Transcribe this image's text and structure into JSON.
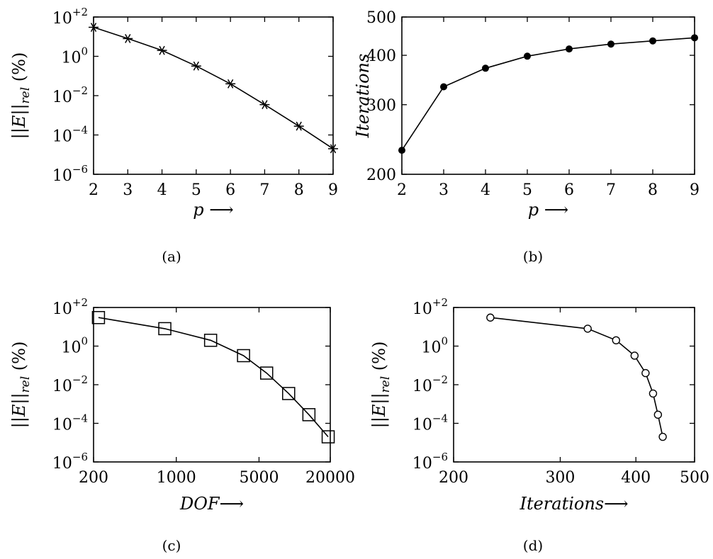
{
  "chart_data": [
    {
      "type": "line",
      "panel": "a",
      "caption": "(a)",
      "xlabel": "p ⟶",
      "ylabel": "||E||rel (%)",
      "yscale": "log",
      "x": [
        2,
        3,
        4,
        5,
        6,
        7,
        8,
        9
      ],
      "xticks": [
        2,
        3,
        4,
        5,
        6,
        7,
        8,
        9
      ],
      "xlim": [
        2,
        9
      ],
      "ylim_exp": [
        -6,
        2
      ],
      "yticks_exp": [
        -6,
        -4,
        -2,
        0,
        2
      ],
      "ytick_labels": [
        "10−6",
        "10−4",
        "10−2",
        "100",
        "10+2"
      ],
      "marker": "star",
      "y": [
        30,
        8,
        2,
        0.32,
        0.04,
        0.0035,
        0.00028,
        2e-05
      ]
    },
    {
      "type": "line",
      "panel": "b",
      "caption": "(b)",
      "xlabel": "p ⟶",
      "ylabel": "Iterations",
      "yscale": "log",
      "x": [
        2,
        3,
        4,
        5,
        6,
        7,
        8,
        9
      ],
      "xticks": [
        2,
        3,
        4,
        5,
        6,
        7,
        8,
        9
      ],
      "xlim": [
        2,
        9
      ],
      "ylim": [
        200,
        500
      ],
      "yticks": [
        200,
        300,
        400,
        500
      ],
      "marker": "filled-circle",
      "y": [
        230,
        333,
        371,
        398,
        415,
        427,
        435,
        443
      ]
    },
    {
      "type": "line",
      "panel": "c",
      "caption": "(c)",
      "xlabel": "DOF ⟶",
      "ylabel": "||E||rel (%)",
      "xscale": "log",
      "yscale": "log",
      "xlim": [
        200,
        20000
      ],
      "xticks": [
        200,
        1000,
        5000,
        20000
      ],
      "ylim_exp": [
        -6,
        2
      ],
      "yticks_exp": [
        -6,
        -4,
        -2,
        0,
        2
      ],
      "ytick_labels": [
        "10−6",
        "10−4",
        "10−2",
        "100",
        "10+2"
      ],
      "marker": "square",
      "x": [
        220,
        800,
        1950,
        3700,
        5800,
        8900,
        13200,
        19200
      ],
      "y": [
        30,
        8,
        2,
        0.32,
        0.04,
        0.0035,
        0.00028,
        2e-05
      ]
    },
    {
      "type": "line",
      "panel": "d",
      "caption": "(d)",
      "xlabel": "Iterations ⟶",
      "ylabel": "||E||rel (%)",
      "xscale": "log",
      "yscale": "log",
      "xlim": [
        200,
        500
      ],
      "xticks": [
        200,
        300,
        400,
        500
      ],
      "ylim_exp": [
        -6,
        2
      ],
      "yticks_exp": [
        -6,
        -4,
        -2,
        0,
        2
      ],
      "ytick_labels": [
        "10−6",
        "10−4",
        "10−2",
        "100",
        "10+2"
      ],
      "marker": "open-circle",
      "x": [
        230,
        333,
        371,
        398,
        415,
        427,
        435,
        443
      ],
      "y": [
        30,
        8,
        2,
        0.32,
        0.04,
        0.0035,
        0.00028,
        2e-05
      ]
    }
  ]
}
